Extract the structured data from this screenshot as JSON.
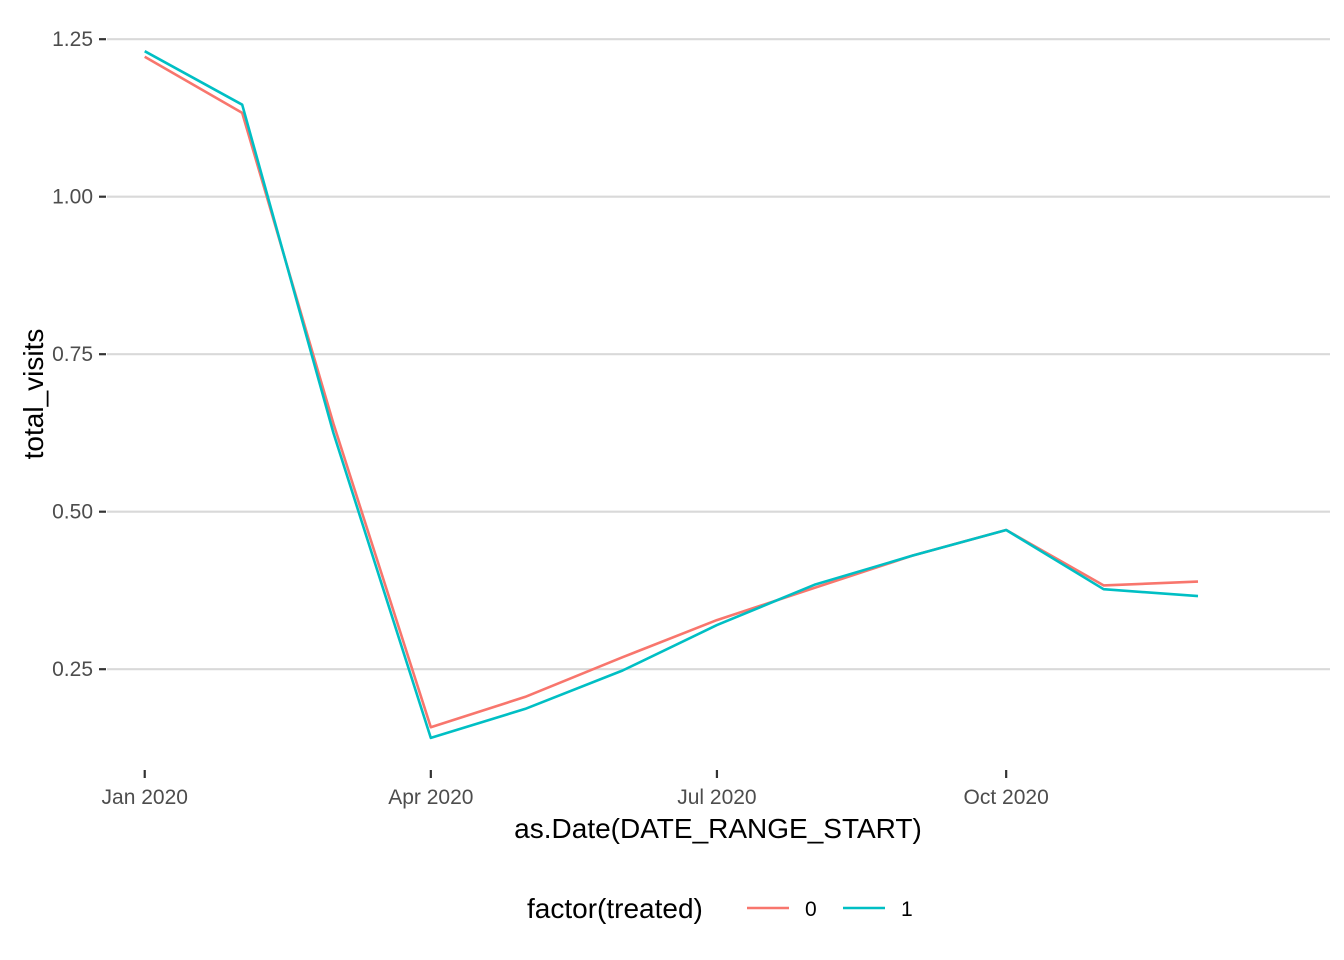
{
  "chart_data": {
    "type": "line",
    "title": "",
    "xlabel": "as.Date(DATE_RANGE_START)",
    "ylabel": "total_visits",
    "x_tick_labels": [
      "Jan 2020",
      "Apr 2020",
      "Jul 2020",
      "Oct 2020"
    ],
    "x_tick_dates": [
      "2020-01-01",
      "2020-04-01",
      "2020-07-01",
      "2020-10-01"
    ],
    "y_tick_labels": [
      "0.25",
      "0.50",
      "0.75",
      "1.00",
      "1.25"
    ],
    "y_ticks": [
      0.25,
      0.5,
      0.75,
      1.0,
      1.25
    ],
    "ylim": [
      0.09,
      1.29
    ],
    "xlim": [
      "2019-12-20",
      "2021-01-12"
    ],
    "grid": true,
    "legend": {
      "title": "factor(treated)",
      "position": "bottom"
    },
    "x": [
      "2020-01-01",
      "2020-02-01",
      "2020-03-01",
      "2020-04-01",
      "2020-05-01",
      "2020-06-01",
      "2020-07-01",
      "2020-08-01",
      "2020-09-01",
      "2020-10-01",
      "2020-11-01",
      "2020-12-01"
    ],
    "series": [
      {
        "name": "0",
        "color": "#F8766D",
        "values": [
          1.222,
          1.133,
          0.64,
          0.158,
          0.206,
          0.269,
          0.328,
          0.379,
          0.43,
          0.471,
          0.383,
          0.389
        ]
      },
      {
        "name": "1",
        "color": "#00BFC4",
        "values": [
          1.231,
          1.146,
          0.625,
          0.141,
          0.187,
          0.248,
          0.32,
          0.384,
          0.43,
          0.471,
          0.377,
          0.366
        ]
      }
    ]
  }
}
